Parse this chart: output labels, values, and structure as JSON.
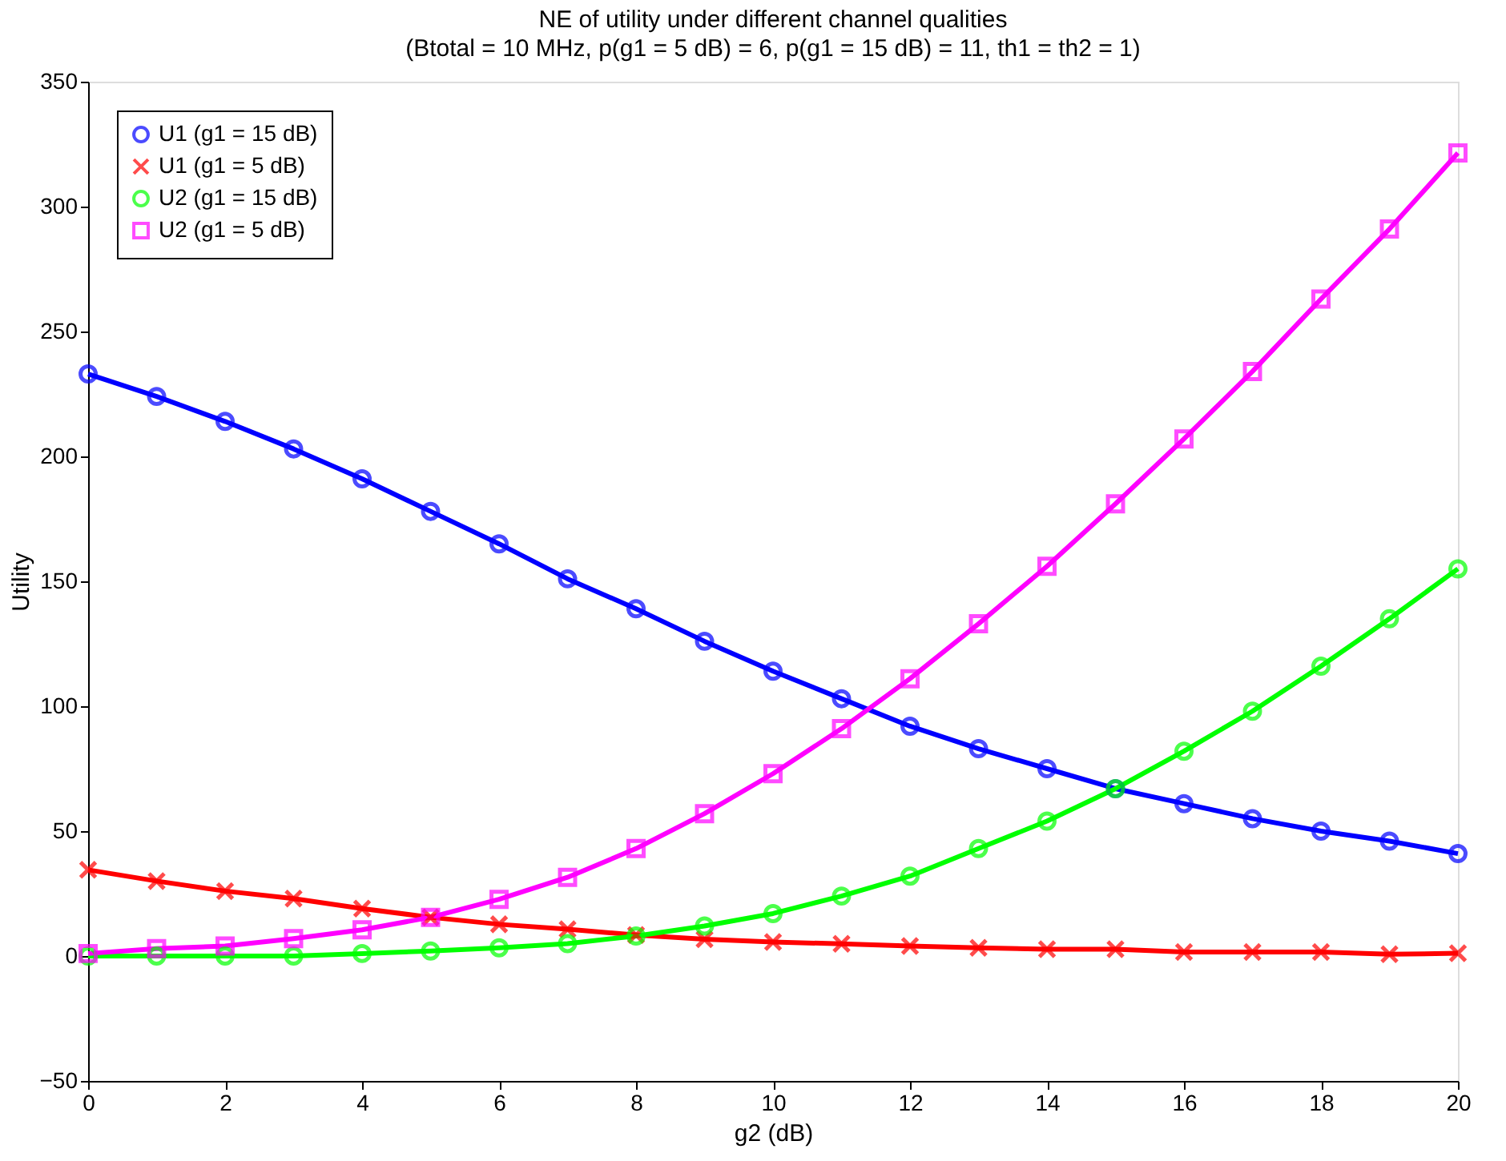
{
  "chart_data": {
    "type": "line",
    "title": "NE of utility under different channel qualities",
    "subtitle": "(Btotal = 10 MHz, p(g1 = 5 dB) = 6, p(g1 = 15 dB) = 11, th1 = th2 = 1)",
    "xlabel": "g2 (dB)",
    "ylabel": "Utility",
    "x": [
      0,
      1,
      2,
      3,
      4,
      5,
      6,
      7,
      8,
      9,
      10,
      11,
      12,
      13,
      14,
      15,
      16,
      17,
      18,
      19,
      20
    ],
    "series": [
      {
        "name": "U1 (g1 = 15 dB)",
        "color": "#0000ff",
        "marker": "circle",
        "values": [
          233,
          224,
          214,
          203,
          191,
          178,
          165,
          151,
          139,
          126,
          114,
          103,
          92,
          83,
          75,
          67,
          61,
          55,
          50,
          46,
          41
        ]
      },
      {
        "name": "U1 (g1 = 5 dB)",
        "color": "#ff0000",
        "marker": "cross",
        "values": [
          34.5,
          30,
          26,
          23,
          19,
          15.5,
          12.7,
          10.7,
          8.4,
          6.7,
          5.6,
          4.9,
          4,
          3.3,
          2.7,
          2.7,
          1.6,
          1.6,
          1.6,
          0.7,
          1.1
        ]
      },
      {
        "name": "U2 (g1 = 15 dB)",
        "color": "#00ff00",
        "marker": "circle",
        "values": [
          0,
          0,
          0,
          0,
          1,
          2,
          3.3,
          5,
          8,
          12,
          17,
          24,
          32,
          43,
          54,
          67,
          82,
          98,
          116,
          135,
          155
        ]
      },
      {
        "name": "U2 (g1 = 5 dB)",
        "color": "#ff00ff",
        "marker": "square",
        "values": [
          1,
          3,
          4,
          7,
          10.5,
          15.5,
          22.7,
          31.5,
          43,
          57,
          73,
          91,
          111,
          133,
          156,
          181,
          207,
          234,
          263,
          291,
          321.5
        ]
      }
    ],
    "xlim": [
      0,
      20
    ],
    "xticks": [
      0,
      2,
      4,
      6,
      8,
      10,
      12,
      14,
      16,
      18,
      20
    ],
    "ylim": [
      -50,
      350
    ],
    "yticks": [
      -50,
      0,
      50,
      100,
      150,
      200,
      250,
      300,
      350
    ],
    "grid": false,
    "legend": "top left",
    "line_style": "solid"
  }
}
